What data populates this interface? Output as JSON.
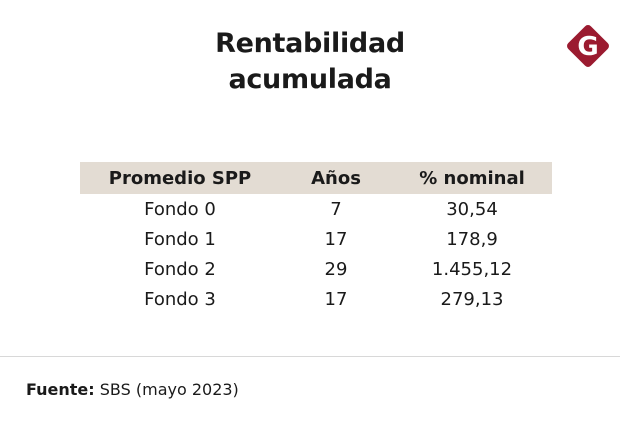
{
  "header": {
    "title_line1": "Rentabilidad",
    "title_line2": "acumulada"
  },
  "logo": {
    "letter": "G",
    "icon": "brand-logo-icon",
    "color": "#9b1b30"
  },
  "chart_data": {
    "type": "table",
    "columns": [
      "Promedio SPP",
      "Años",
      "% nominal"
    ],
    "rows": [
      [
        "Fondo 0",
        "7",
        "30,54"
      ],
      [
        "Fondo 1",
        "17",
        "178,9"
      ],
      [
        "Fondo 2",
        "29",
        "1.455,12"
      ],
      [
        "Fondo 3",
        "17",
        "279,13"
      ]
    ]
  },
  "footer": {
    "source_label": "Fuente:",
    "source_text": "SBS (mayo 2023)"
  },
  "colors": {
    "header_bg": "#e3dcd3",
    "text": "#1a1a1a"
  }
}
